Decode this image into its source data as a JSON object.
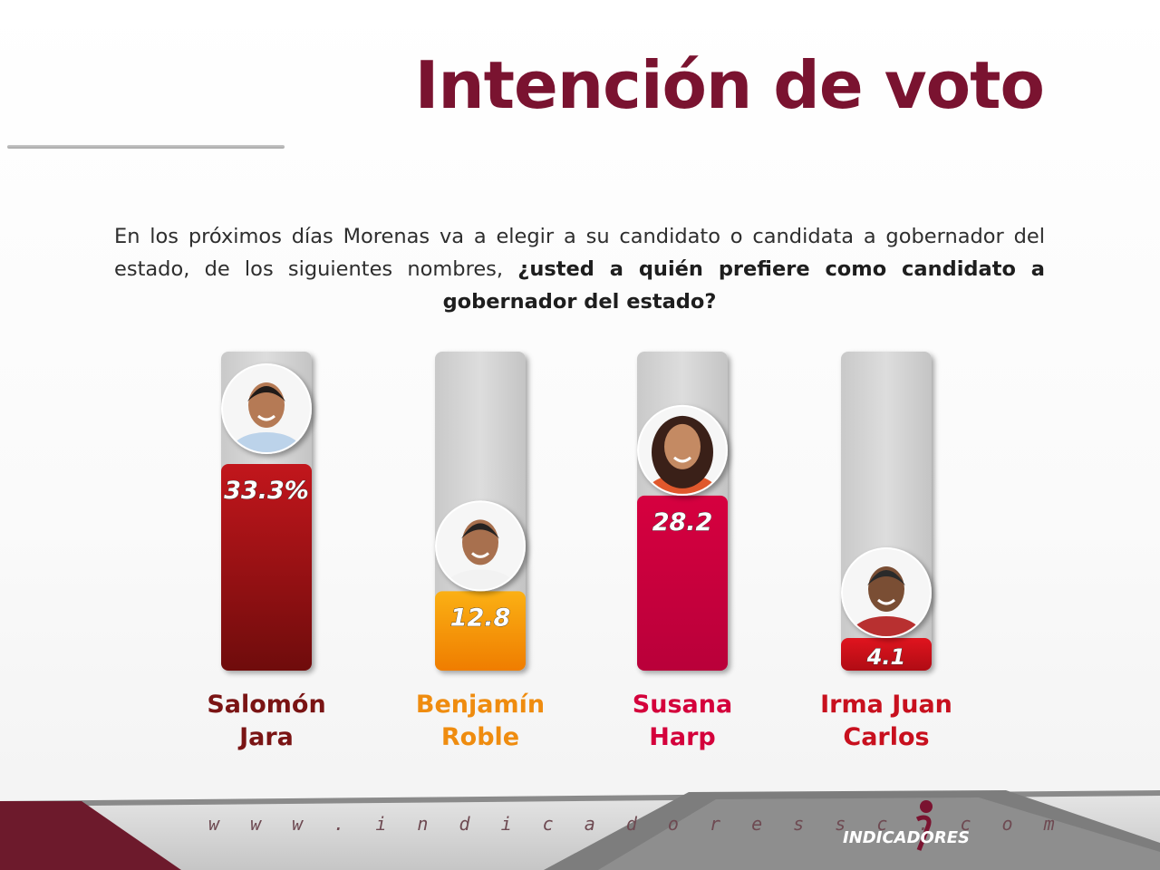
{
  "title": "Intención de voto",
  "question": {
    "text": "En los próximos días Morenas va a elegir a su candidato o candidata a gobernador del estado, de los siguientes nombres,",
    "bold": "¿usted a quién prefiere como candidato a gobernador del estado?"
  },
  "chart_data": {
    "type": "bar",
    "categories": [
      "Salomón Jara",
      "Benjamín Roble",
      "Susana Harp",
      "Irma Juan Carlos"
    ],
    "values": [
      33.3,
      12.8,
      28.2,
      4.1
    ],
    "value_labels": [
      "33.3%",
      "12.8",
      "28.2",
      "4.1"
    ],
    "name_lines": [
      [
        "Salomón",
        "Jara"
      ],
      [
        "Benjamín",
        "Roble"
      ],
      [
        "Susana",
        "Harp"
      ],
      [
        "Irma Juan",
        "Carlos"
      ]
    ],
    "bar_colors": [
      [
        "#c2161c",
        "#6f0c0c"
      ],
      [
        "#fbb014",
        "#ef7d00"
      ],
      [
        "#d6003f",
        "#b9003a"
      ],
      [
        "#e0141e",
        "#b00c14"
      ]
    ],
    "name_colors": [
      "#7a1414",
      "#ef8c0f",
      "#d4003b",
      "#c8101e"
    ],
    "ylim": [
      0,
      40
    ]
  },
  "footer": {
    "url": "w w w . i n d i c a d o r e s s c . c o m",
    "brand": "INDICADORES"
  },
  "icons": [
    "avatar-salomon-jara",
    "avatar-benjamin-roble",
    "avatar-susana-harp",
    "avatar-irma-juan-carlos",
    "indicadores-logo"
  ]
}
